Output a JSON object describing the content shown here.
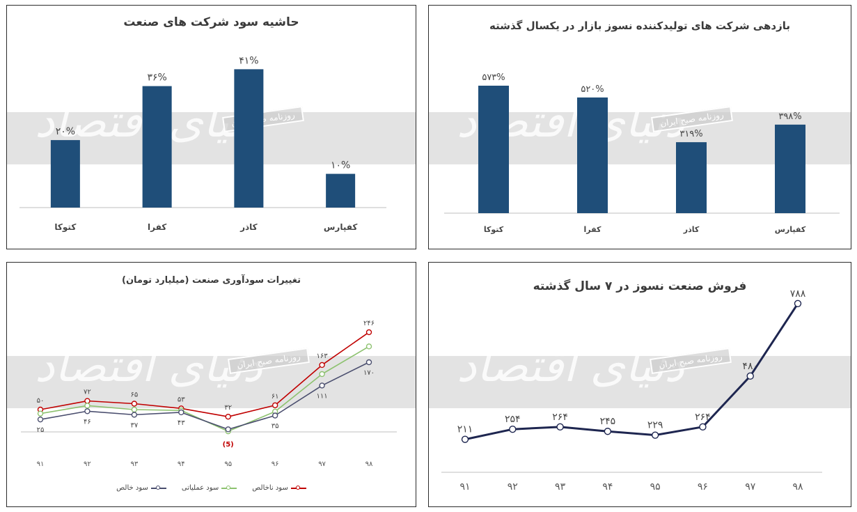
{
  "watermark": {
    "brand": "دنیای اقتصاد",
    "stamp": "روزنامه صبح ایران"
  },
  "colors": {
    "bar": "#1f4e79",
    "axis": "#bfbfbf",
    "line_red": "#c00000",
    "line_green": "#8dc26f",
    "line_gray": "#4a4e6e",
    "line_navy": "#1e2650",
    "negative_label": "#c00000"
  },
  "chart_data": [
    {
      "id": "margin",
      "type": "bar",
      "title": "حاشیه سود شرکت های صنعت",
      "categories": [
        "کتوکا",
        "کفرا",
        "کاذر",
        "کفپارس"
      ],
      "values": [
        20,
        36,
        41,
        10
      ],
      "value_labels": [
        "۲۰%",
        "۳۶%",
        "۴۱%",
        "۱۰%"
      ],
      "ylim": [
        0,
        45
      ]
    },
    {
      "id": "returns",
      "type": "bar",
      "title": "بازدهی شرکت های تولیدکننده نسوز بازار در یکسال گذشته",
      "categories": [
        "کتوکا",
        "کفرا",
        "کاذر",
        "کفپارس"
      ],
      "values": [
        573,
        520,
        319,
        398
      ],
      "value_labels": [
        "۵۷۳%",
        "۵۲۰%",
        "۳۱۹%",
        "۳۹۸%"
      ],
      "ylim": [
        0,
        620
      ]
    },
    {
      "id": "profit",
      "type": "line",
      "title": "تغییرات سودآوری صنعت (میلیارد تومان)",
      "categories": [
        "۹۱",
        "۹۲",
        "۹۳",
        "۹۴",
        "۹۵",
        "۹۶",
        "۹۷",
        "۹۸"
      ],
      "ylim": [
        -10,
        260
      ],
      "series": [
        {
          "name": "سود ناخالص",
          "color_key": "line_red",
          "values": [
            50,
            72,
            65,
            53,
            32,
            61,
            163,
            246
          ],
          "labels": [
            "۵۰",
            "۷۲",
            "۶۵",
            "۵۳",
            "۳۲",
            "۶۱",
            "۱۶۳",
            "۲۴۶"
          ]
        },
        {
          "name": "سود عملیاتی",
          "color_key": "line_green",
          "values": [
            40,
            60,
            50,
            48,
            -5,
            45,
            140,
            210
          ],
          "labels": [
            "",
            "",
            "",
            "",
            "(5)",
            "",
            "",
            ""
          ]
        },
        {
          "name": "سود خالص",
          "color_key": "line_gray",
          "values": [
            25,
            46,
            37,
            43,
            0,
            35,
            111,
            170
          ],
          "labels": [
            "۲۵",
            "۴۶",
            "۳۷",
            "۴۳",
            "",
            "۳۵",
            "۱۱۱",
            "۱۷۰"
          ]
        }
      ]
    },
    {
      "id": "sales",
      "type": "line",
      "title": "فروش صنعت نسوز در ۷ سال گذشته",
      "categories": [
        "۹۱",
        "۹۲",
        "۹۳",
        "۹۴",
        "۹۵",
        "۹۶",
        "۹۷",
        "۹۸"
      ],
      "ylim": [
        0,
        820
      ],
      "series": [
        {
          "color_key": "line_navy",
          "values": [
            211,
            254,
            264,
            245,
            229,
            264,
            480,
            788
          ],
          "labels": [
            "۲۱۱",
            "۲۵۴",
            "۲۶۴",
            "۲۴۵",
            "۲۲۹",
            "۲۶۴",
            "۴۸۰",
            "۷۸۸"
          ]
        }
      ]
    }
  ]
}
